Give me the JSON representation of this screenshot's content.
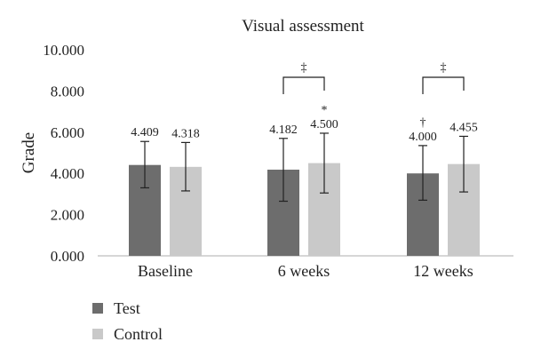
{
  "chart_data": {
    "type": "bar",
    "title": "Visual assessment",
    "xlabel": "",
    "ylabel": "Grade",
    "ylim": [
      0,
      10
    ],
    "y_ticks": [
      "0.000",
      "2.000",
      "4.000",
      "6.000",
      "8.000",
      "10.000"
    ],
    "categories": [
      "Baseline",
      "6 weeks",
      "12 weeks"
    ],
    "series": [
      {
        "name": "Test",
        "color": "#6d6d6d",
        "values": [
          4.409,
          4.182,
          4.0
        ],
        "value_labels": [
          "4.409",
          "4.182",
          "4.000"
        ],
        "error_low": [
          3.3,
          2.65,
          2.7
        ],
        "error_high": [
          5.55,
          5.7,
          5.35
        ]
      },
      {
        "name": "Control",
        "color": "#c9c9c9",
        "values": [
          4.318,
          4.5,
          4.455
        ],
        "value_labels": [
          "4.318",
          "4.500",
          "4.455"
        ],
        "error_low": [
          3.15,
          3.05,
          3.1
        ],
        "error_high": [
          5.5,
          5.95,
          5.8
        ]
      }
    ],
    "grid": false,
    "legend_position": "bottom-left",
    "annotations": {
      "significance_brackets": [
        {
          "category": "6 weeks",
          "symbol": "‡"
        },
        {
          "category": "12 weeks",
          "symbol": "‡"
        }
      ],
      "markers": [
        {
          "category": "6 weeks",
          "series": "Control",
          "symbol": "*"
        },
        {
          "category": "12 weeks",
          "series": "Test",
          "symbol": "†"
        }
      ]
    }
  }
}
